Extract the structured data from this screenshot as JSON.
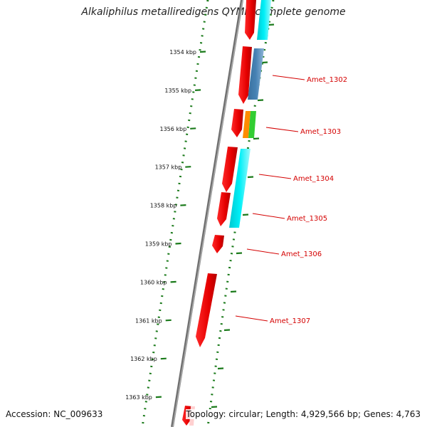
{
  "title": "Alkaliphilus metalliredigens QYMF, complete genome",
  "accession_text": "Accession: NC_009633",
  "summary_text": "Topology: circular; Length: 4,929,566 bp; Genes: 4,763",
  "colors": {
    "backbone": "#888888",
    "tick": "#1a7a1a",
    "gene_forward": "#ff0000",
    "cyan": "#00e5ee",
    "steelblue": "#4682b4",
    "orange": "#ff8c00",
    "green": "#32cd32",
    "label": "#d40000"
  },
  "ticks": [
    {
      "label": "1354 kbp"
    },
    {
      "label": "1355 kbp"
    },
    {
      "label": "1356 kbp"
    },
    {
      "label": "1357 kbp"
    },
    {
      "label": "1358 kbp"
    },
    {
      "label": "1359 kbp"
    },
    {
      "label": "1360 kbp"
    },
    {
      "label": "1361 kbp"
    },
    {
      "label": "1362 kbp"
    },
    {
      "label": "1363 kbp"
    }
  ],
  "gene_labels": [
    {
      "label": "Amet_1302"
    },
    {
      "label": "Amet_1303"
    },
    {
      "label": "Amet_1304"
    },
    {
      "label": "Amet_1305"
    },
    {
      "label": "Amet_1306"
    },
    {
      "label": "Amet_1307"
    }
  ]
}
